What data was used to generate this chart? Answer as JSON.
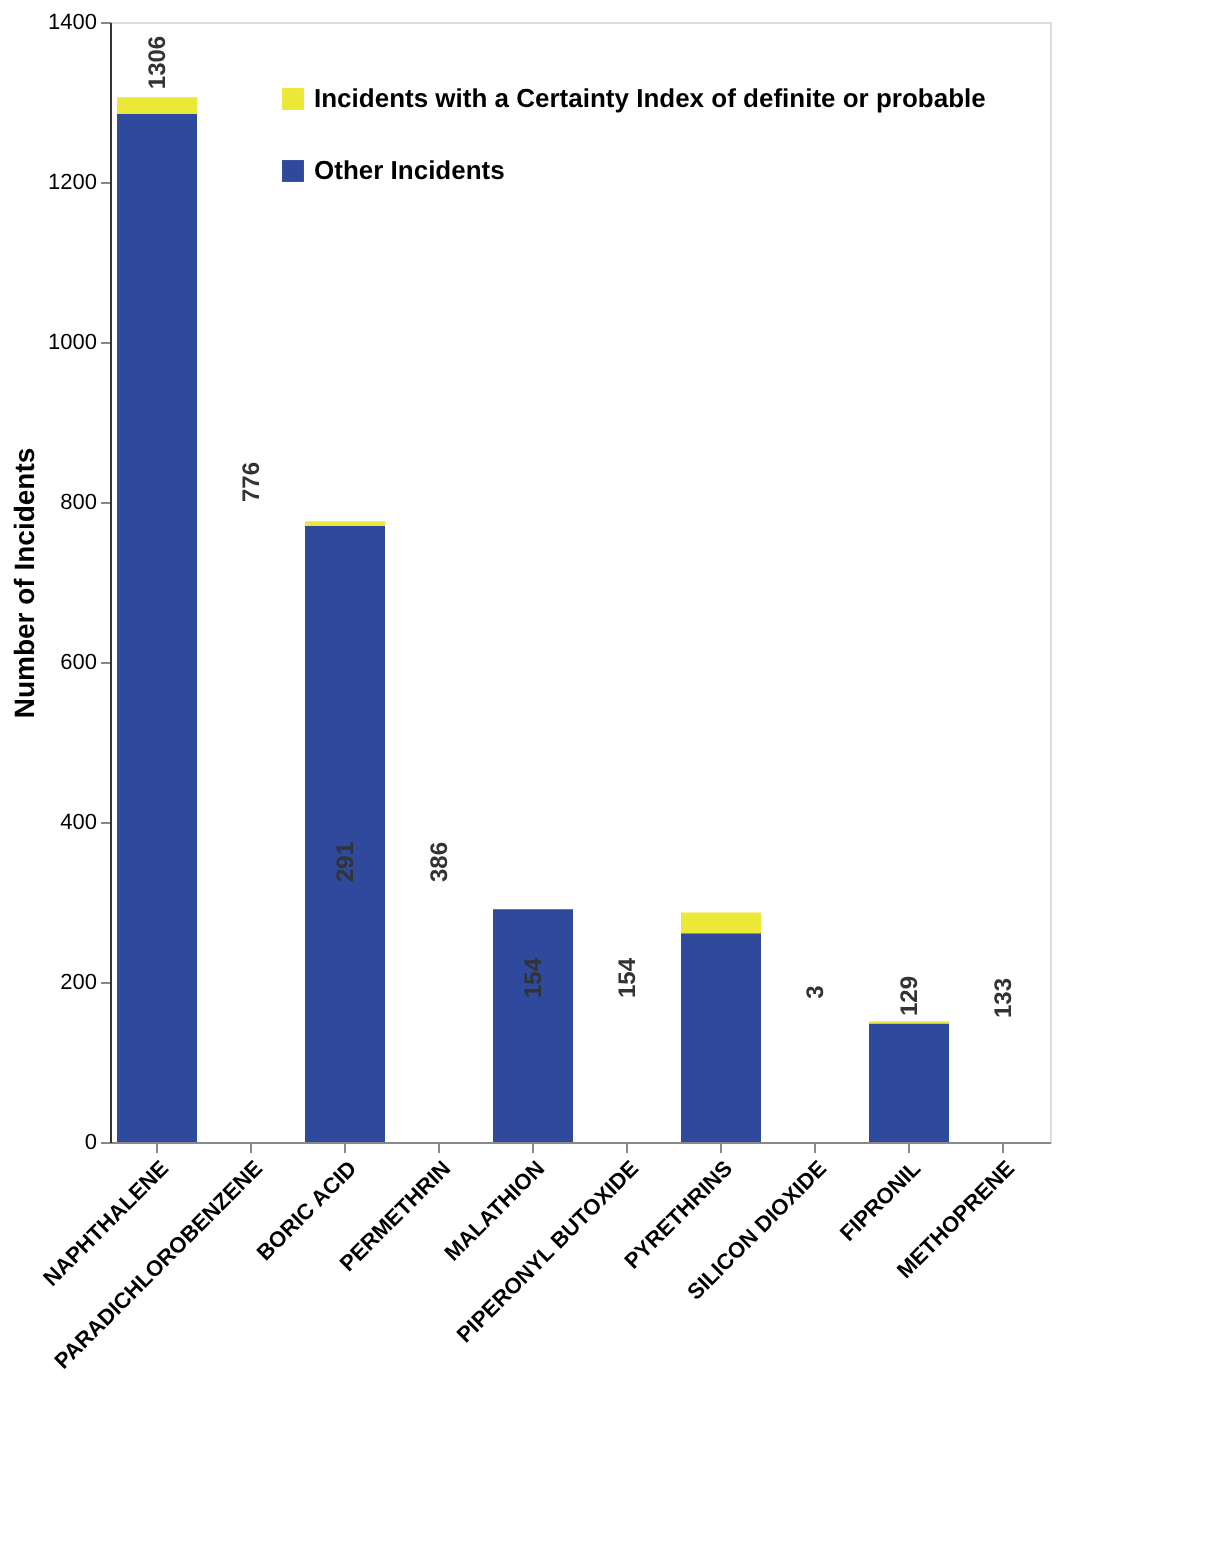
{
  "chart_data": {
    "type": "bar",
    "stacked": true,
    "ylabel": "Number of Incidents",
    "categories": [
      "NAPHTHALENE",
      "PARADICHLOROBENZENE",
      "BORIC ACID",
      "PERMETHRIN",
      "MALATHION",
      "PIPERONYL BUTOXIDE",
      "PYRETHRINS",
      "SILICON DIOXIDE",
      "FIPRONIL",
      "METHOPRENE"
    ],
    "series": [
      {
        "name": "Other Incidents",
        "color": "#2f4a9c",
        "values": [
          1285,
          null,
          770,
          null,
          291,
          null,
          261,
          null,
          148,
          null
        ]
      },
      {
        "name": "Incidents with a Certainty Index of definite or probable",
        "color": "#ece838",
        "values": [
          21,
          null,
          6,
          null,
          0,
          null,
          26,
          null,
          3,
          null
        ]
      }
    ],
    "ylim": [
      0,
      1400
    ],
    "yticks": [
      0,
      200,
      400,
      600,
      800,
      1000,
      1200,
      1400
    ],
    "grid": false,
    "legend": "top right",
    "annotations": [
      {
        "text": "1306",
        "x": "NAPHTHALENE",
        "y": 1306
      },
      "776",
      "291",
      "386",
      "154",
      "154",
      "3",
      "129",
      "133"
    ]
  }
}
